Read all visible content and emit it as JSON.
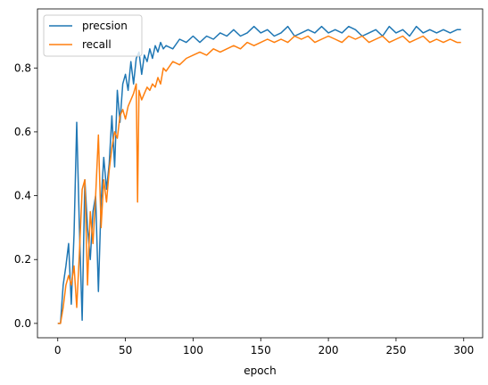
{
  "chart_data": {
    "type": "line",
    "title": "",
    "xlabel": "epoch",
    "ylabel": "",
    "xlim": [
      -15,
      314
    ],
    "ylim": [
      -0.045,
      0.985
    ],
    "xticks": [
      0,
      50,
      100,
      150,
      200,
      250,
      300
    ],
    "yticks": [
      0.0,
      0.2,
      0.4,
      0.6,
      0.8
    ],
    "grid": false,
    "legend_position": "top-left",
    "series": [
      {
        "name": "precsion",
        "color": "#1f77b4",
        "x": [
          0,
          2,
          4,
          6,
          8,
          10,
          12,
          14,
          16,
          18,
          20,
          22,
          24,
          26,
          28,
          30,
          32,
          34,
          36,
          38,
          40,
          42,
          44,
          46,
          48,
          50,
          52,
          54,
          56,
          58,
          60,
          62,
          64,
          66,
          68,
          70,
          72,
          74,
          76,
          78,
          80,
          85,
          90,
          95,
          100,
          105,
          110,
          115,
          120,
          125,
          130,
          135,
          140,
          145,
          150,
          155,
          160,
          165,
          170,
          175,
          180,
          185,
          190,
          195,
          200,
          205,
          210,
          215,
          220,
          225,
          230,
          235,
          240,
          245,
          250,
          255,
          260,
          265,
          270,
          275,
          280,
          285,
          290,
          295,
          298
        ],
        "y": [
          0.0,
          0.0,
          0.12,
          0.18,
          0.25,
          0.06,
          0.28,
          0.63,
          0.3,
          0.01,
          0.45,
          0.3,
          0.2,
          0.35,
          0.4,
          0.1,
          0.38,
          0.52,
          0.42,
          0.5,
          0.65,
          0.49,
          0.73,
          0.63,
          0.75,
          0.78,
          0.73,
          0.82,
          0.75,
          0.83,
          0.85,
          0.78,
          0.84,
          0.82,
          0.86,
          0.83,
          0.87,
          0.85,
          0.88,
          0.86,
          0.87,
          0.86,
          0.89,
          0.88,
          0.9,
          0.88,
          0.9,
          0.89,
          0.91,
          0.9,
          0.92,
          0.9,
          0.91,
          0.93,
          0.91,
          0.92,
          0.9,
          0.91,
          0.93,
          0.9,
          0.91,
          0.92,
          0.91,
          0.93,
          0.91,
          0.92,
          0.91,
          0.93,
          0.92,
          0.9,
          0.91,
          0.92,
          0.9,
          0.93,
          0.91,
          0.92,
          0.9,
          0.93,
          0.91,
          0.92,
          0.91,
          0.92,
          0.91,
          0.92,
          0.92
        ]
      },
      {
        "name": "recall",
        "color": "#ff7f0e",
        "x": [
          0,
          2,
          4,
          6,
          8,
          10,
          12,
          14,
          16,
          18,
          20,
          22,
          24,
          26,
          28,
          30,
          32,
          34,
          36,
          38,
          40,
          42,
          44,
          46,
          48,
          50,
          52,
          54,
          56,
          58,
          59,
          60,
          62,
          64,
          66,
          68,
          70,
          72,
          74,
          76,
          78,
          80,
          85,
          90,
          95,
          100,
          105,
          110,
          115,
          120,
          125,
          130,
          135,
          140,
          145,
          150,
          155,
          160,
          165,
          170,
          175,
          180,
          185,
          190,
          195,
          200,
          205,
          210,
          215,
          220,
          225,
          230,
          235,
          240,
          245,
          250,
          255,
          260,
          265,
          270,
          275,
          280,
          285,
          290,
          295,
          298
        ],
        "y": [
          0.0,
          0.0,
          0.05,
          0.12,
          0.15,
          0.12,
          0.18,
          0.05,
          0.22,
          0.42,
          0.45,
          0.12,
          0.35,
          0.25,
          0.4,
          0.59,
          0.3,
          0.45,
          0.38,
          0.48,
          0.55,
          0.6,
          0.58,
          0.65,
          0.67,
          0.64,
          0.68,
          0.7,
          0.72,
          0.75,
          0.38,
          0.73,
          0.7,
          0.72,
          0.74,
          0.73,
          0.75,
          0.74,
          0.77,
          0.75,
          0.8,
          0.79,
          0.82,
          0.81,
          0.83,
          0.84,
          0.85,
          0.84,
          0.86,
          0.85,
          0.86,
          0.87,
          0.86,
          0.88,
          0.87,
          0.88,
          0.89,
          0.88,
          0.89,
          0.88,
          0.9,
          0.89,
          0.9,
          0.88,
          0.89,
          0.9,
          0.89,
          0.88,
          0.9,
          0.89,
          0.9,
          0.88,
          0.89,
          0.9,
          0.88,
          0.89,
          0.9,
          0.88,
          0.89,
          0.9,
          0.88,
          0.89,
          0.88,
          0.89,
          0.88,
          0.88
        ]
      }
    ]
  }
}
